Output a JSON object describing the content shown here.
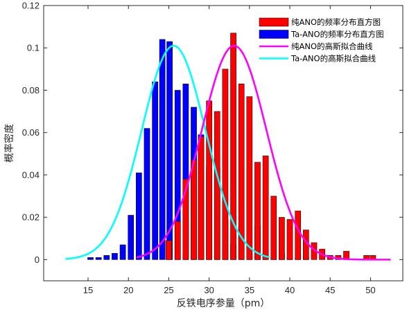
{
  "chart_data": {
    "type": "bar",
    "xlabel": "反铁电序参量（pm）",
    "ylabel": "概率密度",
    "xlim": [
      9.5,
      54
    ],
    "ylim": [
      -0.01,
      0.12
    ],
    "xticks": [
      15,
      20,
      25,
      30,
      35,
      40,
      45,
      50
    ],
    "yticks": [
      0,
      0.02,
      0.04,
      0.06,
      0.08,
      0.1,
      0.12
    ],
    "yticklabels": [
      "0",
      "0.02",
      "0.04",
      "0.06",
      "0.08",
      "0.1",
      "0.12"
    ],
    "bin_width": 0.7,
    "grid": false,
    "legend_position": "top-right",
    "legend_items": [
      "纯ANO的频率分布直方图",
      "Ta-ANO的频率分布直方图",
      "纯ANO的高斯拟合曲线",
      "Ta-ANO的高斯拟合曲线"
    ],
    "colors": {
      "pure_hist": "#ff0000",
      "ta_hist": "#0000ff",
      "pure_fit": "#ff00ff",
      "ta_fit": "#00ffff"
    },
    "series": [
      {
        "name": "纯ANO的频率分布直方图",
        "kind": "histogram",
        "x": [
          25.0,
          26.1,
          27.1,
          28.1,
          29.0,
          30.0,
          31.0,
          32.0,
          33.0,
          34.0,
          35.0,
          36.0,
          37.0,
          38.0,
          39.0,
          40.0,
          41.0,
          42.0,
          43.0,
          44.0,
          45.0,
          46.0,
          47.0,
          49.5,
          50.3
        ],
        "values": [
          0.009,
          0.018,
          0.038,
          0.047,
          0.058,
          0.075,
          0.07,
          0.09,
          0.107,
          0.083,
          0.077,
          0.046,
          0.049,
          0.03,
          0.02,
          0.019,
          0.023,
          0.014,
          0.008,
          0.005,
          0.002,
          0.002,
          0.004,
          0.002,
          0.002
        ]
      },
      {
        "name": "Ta-ANO的频率分布直方图",
        "kind": "histogram",
        "x": [
          15.3,
          16.3,
          17.3,
          18.3,
          19.3,
          20.3,
          21.3,
          22.3,
          23.3,
          24.2,
          25.1,
          26.1,
          27.1,
          28.1,
          29.0,
          30.0,
          31.0,
          32.0,
          33.0,
          34.0,
          35.0,
          36.0,
          37.0,
          38.0,
          39.0,
          40.0,
          41.0,
          42.0
        ],
        "values": [
          0.001,
          0.001,
          0.002,
          0.003,
          0.007,
          0.021,
          0.041,
          0.062,
          0.084,
          0.104,
          0.103,
          0.08,
          0.083,
          0.072,
          0.059,
          0.044,
          0.043,
          0.019,
          0.007,
          0.016,
          0.003,
          0.016,
          0.003,
          0.001,
          0.003,
          0.001,
          0.001,
          0.001
        ]
      },
      {
        "name": "纯ANO的高斯拟合曲线",
        "kind": "gaussian",
        "mean": 33.1,
        "sigma": 4.0,
        "peak": 0.101,
        "x_range": [
          21.0,
          52.5
        ]
      },
      {
        "name": "Ta-ANO的高斯拟合曲线",
        "kind": "gaussian",
        "mean": 25.6,
        "sigma": 3.95,
        "peak": 0.101,
        "x_range": [
          12.2,
          37.5
        ]
      }
    ]
  }
}
